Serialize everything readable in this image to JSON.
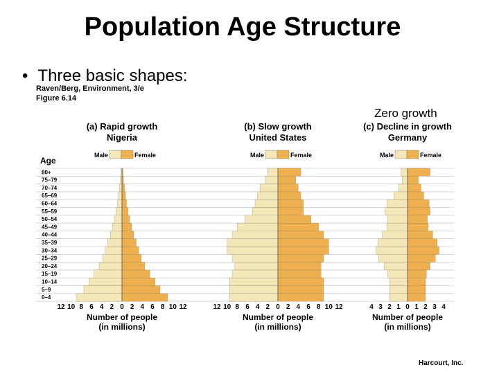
{
  "slide": {
    "title": "Population Age Structure",
    "bullet": "Three basic shapes:",
    "source_line": "Raven/Berg, Environment, 3/e",
    "figure_label": "Figure 6.14",
    "annotation": "Zero growth",
    "publisher": "Harcourt, Inc."
  },
  "colors": {
    "male": "#f3e6b8",
    "female": "#eeb04f",
    "grid": "#bdbdbd",
    "outline": "#8a8060"
  },
  "chart_data": [
    {
      "type": "bar",
      "orientation": "horizontal-pyramid",
      "title": "(a) Rapid growth",
      "subtitle": "Nigeria",
      "ylabel": "Age",
      "xlabel": "Number of people\n(in millions)",
      "categories": [
        "0–4",
        "5–9",
        "10–14",
        "15–19",
        "20–24",
        "25–29",
        "30–34",
        "35–39",
        "40–44",
        "45–49",
        "50–54",
        "55–59",
        "60–64",
        "65–69",
        "70–74",
        "75–79",
        "80+"
      ],
      "series": [
        {
          "name": "Male",
          "values": [
            9,
            7.5,
            6.5,
            5.5,
            4.5,
            3.8,
            3.3,
            2.8,
            2.3,
            1.9,
            1.5,
            1.2,
            0.9,
            0.7,
            0.5,
            0.3,
            0.2
          ]
        },
        {
          "name": "Female",
          "values": [
            9,
            7.5,
            6.5,
            5.5,
            4.5,
            3.8,
            3.3,
            2.8,
            2.3,
            1.9,
            1.5,
            1.2,
            0.9,
            0.7,
            0.5,
            0.3,
            0.2
          ]
        }
      ],
      "xlim": [
        -12,
        12
      ],
      "xticks": [
        "12",
        "10",
        "8",
        "6",
        "4",
        "2",
        "0",
        "2",
        "4",
        "6",
        "8",
        "10",
        "12"
      ]
    },
    {
      "type": "bar",
      "orientation": "horizontal-pyramid",
      "title": "(b) Slow growth",
      "subtitle": "United States",
      "xlabel": "Number of people\n(in millions)",
      "categories": [
        "0–4",
        "5–9",
        "10–14",
        "15–19",
        "20–24",
        "25–29",
        "30–34",
        "35–39",
        "40–44",
        "45–49",
        "50–54",
        "55–59",
        "60–64",
        "65–69",
        "70–74",
        "75–79",
        "80+"
      ],
      "series": [
        {
          "name": "Male",
          "values": [
            9.5,
            9.5,
            9.5,
            9,
            8.5,
            9,
            10,
            10,
            9,
            8,
            6.5,
            5,
            4.5,
            4,
            3.5,
            2.5,
            2
          ]
        },
        {
          "name": "Female",
          "values": [
            9,
            9,
            9,
            8.5,
            8.5,
            9,
            10,
            10,
            9,
            8,
            6.5,
            5,
            5,
            4.5,
            4,
            3.5,
            4.5
          ]
        }
      ],
      "xlim": [
        -12,
        12
      ],
      "xticks": [
        "12",
        "10",
        "8",
        "6",
        "4",
        "2",
        "0",
        "2",
        "4",
        "6",
        "8",
        "10",
        "12"
      ]
    },
    {
      "type": "bar",
      "orientation": "horizontal-pyramid",
      "title": "(c) Decline in growth",
      "subtitle": "Germany",
      "xlabel": "Number of people\n(in millions)",
      "categories": [
        "0–4",
        "5–9",
        "10–14",
        "15–19",
        "20–24",
        "25–29",
        "30–34",
        "35–39",
        "40–44",
        "45–49",
        "50–54",
        "55–59",
        "60–64",
        "65–69",
        "70–74",
        "75–79",
        "80+"
      ],
      "series": [
        {
          "name": "Male",
          "values": [
            2,
            2,
            2,
            2.2,
            2.6,
            3.2,
            3.5,
            3.3,
            2.8,
            2.3,
            2.2,
            2.5,
            2.3,
            1.5,
            1,
            0.6,
            0.7
          ]
        },
        {
          "name": "Female",
          "values": [
            2,
            2,
            2,
            2.1,
            2.5,
            3.1,
            3.5,
            3.3,
            2.8,
            2.3,
            2.2,
            2.5,
            2.4,
            1.8,
            1.5,
            1.2,
            2.5
          ]
        }
      ],
      "xlim": [
        -4,
        4
      ],
      "xticks": [
        "4",
        "3",
        "2",
        "1",
        "0",
        "1",
        "2",
        "3",
        "4"
      ]
    }
  ],
  "legend": {
    "male": "Male",
    "female": "Female"
  }
}
